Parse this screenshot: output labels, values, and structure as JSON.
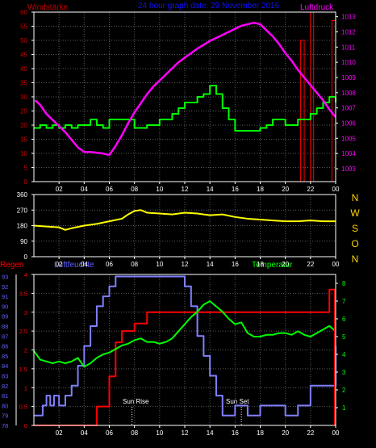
{
  "header": {
    "left_label": "Windstärke",
    "title": "24 hour graph date: 29 November 2016",
    "right_label": "Luftdruck"
  },
  "colors": {
    "background": "#000000",
    "frame": "#ffffff",
    "grid": "#5a5a5a",
    "wind_axis": "#c00000",
    "pressure": "#ff00ff",
    "wind": "#00ff00",
    "rain": "#ff0000",
    "direction": "#ffff00",
    "direction_letters": "#ffd400",
    "humidity": "#8080ff",
    "temperature": "#00ff00",
    "bottom_left_axis": "#6060ff"
  },
  "time_axis": {
    "tick_labels": [
      "02",
      "04",
      "06",
      "08",
      "10",
      "12",
      "14",
      "16",
      "18",
      "20",
      "22",
      "00"
    ],
    "range": [
      0,
      24
    ]
  },
  "sun": {
    "rise_label": "Sun Rise",
    "rise_hour": 7.8,
    "set_label": "Sun Set",
    "set_hour": 16.5
  },
  "chart_data": [
    {
      "type": "line",
      "name": "top-panel",
      "left_axis": {
        "title": "Windstärke",
        "ticks": [
          0,
          5,
          10,
          15,
          20,
          25,
          30,
          35,
          40,
          45,
          50,
          55,
          60
        ],
        "ylim": [
          0,
          60
        ]
      },
      "right_axis": {
        "title": "Luftdruck",
        "ticks": [
          1003,
          1004,
          1005,
          1006,
          1007,
          1008,
          1009,
          1010,
          1011,
          1012,
          1013
        ],
        "ylim": [
          1002.15,
          1013.3
        ]
      },
      "series": [
        {
          "axis": "right",
          "style": "line",
          "x": [
            0.1,
            0.5,
            1,
            1.5,
            2,
            2.5,
            3,
            3.5,
            4,
            4.5,
            5,
            5.5,
            6,
            6.5,
            7,
            7.5,
            8,
            8.5,
            9,
            9.5,
            10,
            10.5,
            11,
            11.5,
            12,
            12.5,
            13,
            13.5,
            14,
            14.5,
            15,
            15.5,
            16,
            16.5,
            17,
            17.5,
            18,
            18.5,
            19,
            19.5,
            20,
            20.5,
            21,
            21.5,
            22,
            22.5,
            23,
            23.5,
            24
          ],
          "values": [
            1007.5,
            1007.2,
            1006.6,
            1006.2,
            1005.8,
            1005.4,
            1004.9,
            1004.4,
            1004.1,
            1004.1,
            1004.05,
            1004.0,
            1003.9,
            1004.5,
            1005.2,
            1006.0,
            1006.7,
            1007.3,
            1007.9,
            1008.4,
            1008.8,
            1009.2,
            1009.6,
            1010.0,
            1010.3,
            1010.6,
            1010.9,
            1011.15,
            1011.4,
            1011.6,
            1011.8,
            1012.0,
            1012.2,
            1012.4,
            1012.5,
            1012.6,
            1012.5,
            1012.1,
            1011.7,
            1011.2,
            1010.6,
            1010.1,
            1009.5,
            1009.0,
            1008.5,
            1008.0,
            1007.5,
            1006.9,
            1006.4
          ]
        },
        {
          "axis": "left",
          "style": "step",
          "x": [
            0,
            0.5,
            1,
            1.5,
            2,
            2.5,
            3,
            3.5,
            4,
            4.5,
            5,
            5.5,
            6,
            6.5,
            7,
            7.5,
            8,
            8.5,
            9,
            9.5,
            10,
            10.5,
            11,
            11.5,
            12,
            12.5,
            13,
            13.5,
            14,
            14.5,
            15,
            15.5,
            16,
            16.5,
            17,
            17.5,
            18,
            18.5,
            19,
            19.5,
            20,
            20.5,
            21,
            21.5,
            22,
            22.5,
            23,
            23.5,
            24
          ],
          "values": [
            19,
            20,
            19,
            20,
            19,
            20,
            19,
            20,
            20,
            22,
            20,
            19,
            22,
            22,
            22,
            22,
            19,
            19,
            20,
            20,
            22,
            22,
            24,
            26,
            28,
            28,
            30,
            31,
            34,
            31,
            26,
            22,
            18,
            18,
            18,
            18,
            19,
            20,
            22,
            22,
            20,
            20,
            22,
            22,
            24,
            26,
            28,
            30,
            28
          ]
        },
        {
          "axis": "left",
          "style": "rain-bars",
          "x": [
            21.2,
            22,
            23.7
          ],
          "values": [
            50,
            60,
            57
          ]
        }
      ]
    },
    {
      "type": "line",
      "name": "wind-direction",
      "left_axis": {
        "ticks": [
          0,
          90,
          180,
          270,
          360
        ],
        "ylim": [
          0,
          360
        ]
      },
      "direction_letters": [
        "N",
        "W",
        "S",
        "O",
        "N"
      ],
      "series": [
        {
          "x": [
            0,
            1,
            2,
            2.5,
            3,
            4,
            5,
            6,
            7,
            7.5,
            8,
            8.5,
            9,
            10,
            11,
            12,
            13,
            14,
            15,
            16,
            17,
            18,
            19,
            20,
            21,
            22,
            23,
            24
          ],
          "values": [
            180,
            175,
            170,
            155,
            165,
            180,
            190,
            205,
            220,
            245,
            265,
            270,
            255,
            250,
            245,
            255,
            250,
            240,
            245,
            230,
            220,
            215,
            210,
            205,
            205,
            210,
            205,
            205
          ]
        }
      ]
    },
    {
      "type": "line",
      "name": "bottom-panel",
      "left_title": "Regen",
      "center_title": "Luftfeuchte",
      "right_title": "Temperatur",
      "rain_axis": {
        "ticks": [
          0,
          0.5,
          1,
          1.5,
          2,
          2.5,
          3,
          3.5,
          4
        ],
        "ylim": [
          0,
          4
        ]
      },
      "humidity_axis": {
        "ticks": [
          78,
          79,
          80,
          81,
          82,
          83,
          84,
          85,
          86,
          87,
          88,
          89,
          90,
          91,
          92,
          93
        ],
        "ylim": [
          78,
          93.2
        ]
      },
      "temperature_axis": {
        "ticks": [
          1,
          2,
          3,
          4,
          5,
          6,
          7,
          8
        ],
        "ylim": [
          0,
          8.5
        ]
      },
      "series": [
        {
          "name": "Luftfeuchte",
          "style": "step",
          "x": [
            0,
            0.7,
            1,
            1.3,
            1.6,
            2,
            2.5,
            3,
            3.5,
            4,
            4.5,
            5,
            5.5,
            6,
            6.5,
            7,
            11.7,
            12,
            12.5,
            13,
            13.5,
            14,
            14.5,
            15,
            16,
            17,
            18,
            19,
            20,
            21,
            22,
            23,
            24
          ],
          "values": [
            79,
            80,
            81,
            80,
            81,
            80,
            81,
            82,
            84,
            86,
            88,
            90,
            91,
            92,
            93,
            93,
            93,
            92,
            90,
            87,
            85,
            83,
            81,
            79,
            80,
            79,
            80,
            80,
            79,
            80,
            82,
            82,
            86
          ]
        },
        {
          "name": "Regen",
          "style": "step",
          "x": [
            0,
            4,
            5,
            6,
            6.5,
            7,
            8,
            9,
            14,
            23,
            23.5,
            24
          ],
          "values": [
            0,
            0,
            0.5,
            1.3,
            2.2,
            2.5,
            2.7,
            3.0,
            3.0,
            3.0,
            3.6,
            3.6
          ]
        },
        {
          "name": "Temperatur",
          "style": "line",
          "x": [
            0,
            0.5,
            1,
            1.5,
            2,
            2.5,
            3,
            3.5,
            4,
            4.5,
            5,
            5.5,
            6,
            6.5,
            7,
            7.5,
            8,
            8.5,
            9,
            9.5,
            10,
            10.5,
            11,
            11.5,
            12,
            12.5,
            13,
            13.5,
            14,
            14.5,
            15,
            15.5,
            16,
            16.5,
            17,
            17.5,
            18,
            18.5,
            19,
            19.5,
            20,
            20.5,
            21,
            21.5,
            22,
            22.5,
            23,
            23.5,
            24
          ],
          "values": [
            4.2,
            3.7,
            3.6,
            3.5,
            3.6,
            3.5,
            3.6,
            3.8,
            3.3,
            3.5,
            3.8,
            4.0,
            4.1,
            4.3,
            4.5,
            4.6,
            4.8,
            4.9,
            4.7,
            4.7,
            4.6,
            4.7,
            4.9,
            5.3,
            5.7,
            6.1,
            6.4,
            6.8,
            7.0,
            6.7,
            6.4,
            6.0,
            5.7,
            5.8,
            5.2,
            5.0,
            5.0,
            5.1,
            5.1,
            5.2,
            5.2,
            5.1,
            5.3,
            5.1,
            5.0,
            5.2,
            5.4,
            5.6,
            5.3
          ]
        }
      ]
    }
  ]
}
